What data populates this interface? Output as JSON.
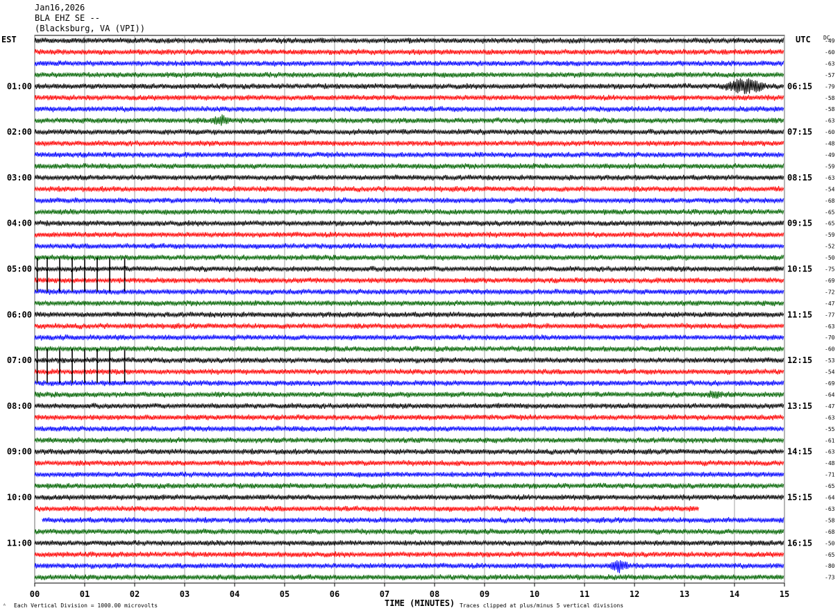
{
  "header": {
    "date": "Jan16,2026",
    "station": "BLA EHZ SE --",
    "location": "(Blacksburg, VA (VPI))"
  },
  "left_tz": "EST",
  "right_tz": "UTC",
  "dc_label": "DC",
  "footer": {
    "scale_note": "Each Vertical Division = 1000.00 microvolts",
    "clip_note": "Traces clipped at plus/minus 5 vertical divisions",
    "corner_mark": "ᴬ"
  },
  "trace_colors": [
    "#000000",
    "#ff0000",
    "#0000ff",
    "#006400"
  ],
  "chart_data": {
    "type": "line",
    "title": "",
    "xlabel": "TIME (MINUTES)",
    "ylabel": "",
    "xlim": [
      0,
      15
    ],
    "x_ticks": [
      "00",
      "01",
      "02",
      "03",
      "04",
      "05",
      "06",
      "07",
      "08",
      "09",
      "10",
      "11",
      "12",
      "13",
      "14",
      "15"
    ],
    "left_hour_labels": [
      "01:00",
      "02:00",
      "03:00",
      "04:00",
      "05:00",
      "06:00",
      "07:00",
      "08:00",
      "09:00",
      "10:00",
      "11:00"
    ],
    "right_hour_labels": [
      "06:15",
      "07:15",
      "08:15",
      "09:15",
      "10:15",
      "11:15",
      "12:15",
      "13:15",
      "14:15",
      "15:15",
      "16:15"
    ],
    "row_minutes": 15,
    "dc_offsets": [
      "-49",
      "-60",
      "-63",
      "-57",
      "-79",
      "-58",
      "-58",
      "-63",
      "-60",
      "-48",
      "-49",
      "-59",
      "-63",
      "-54",
      "-68",
      "-65",
      "-65",
      "-59",
      "-52",
      "-50",
      "-75",
      "-69",
      "-72",
      "-47",
      "-77",
      "-63",
      "-70",
      "-60",
      "-53",
      "-54",
      "-69",
      "-64",
      "-47",
      "-63",
      "-55",
      "-61",
      "-63",
      "-48",
      "-71",
      "-65",
      "-64",
      "-63",
      "-58",
      "-68",
      "-50",
      "-65",
      "-80",
      "-73"
    ],
    "events": [
      {
        "row": 4,
        "minute": 14.2,
        "amplitude": "large"
      },
      {
        "row": 7,
        "minute": 3.7,
        "amplitude": "medium"
      },
      {
        "row": 31,
        "minute": 13.6,
        "amplitude": "small"
      },
      {
        "row": 46,
        "minute": 11.7,
        "amplitude": "medium"
      }
    ],
    "spikes_minutes": [
      0.05,
      0.25,
      0.5,
      0.75,
      1.0,
      1.25,
      1.5,
      1.8
    ],
    "spike_rows": [
      20,
      28
    ],
    "partial_row": {
      "row": 41,
      "ends_at_minute": 13.3
    }
  }
}
